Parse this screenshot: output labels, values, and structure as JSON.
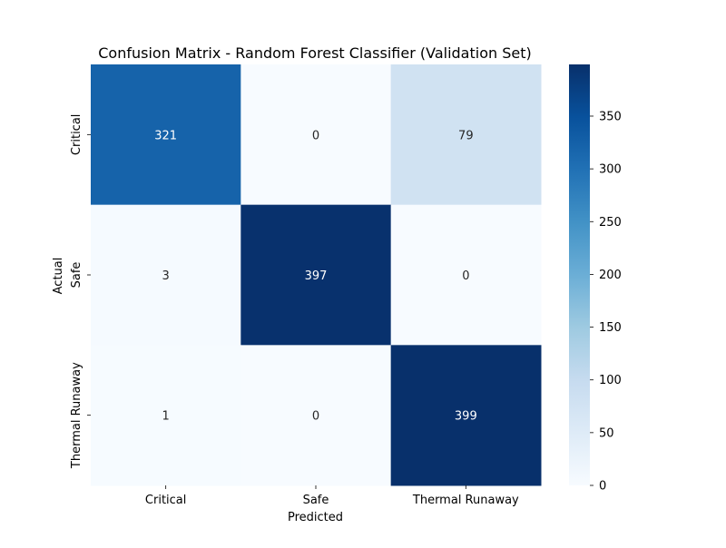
{
  "chart_data": {
    "type": "heatmap",
    "title": "Confusion Matrix - Random Forest Classifier (Validation Set)",
    "xlabel": "Predicted",
    "ylabel": "Actual",
    "x_categories": [
      "Critical",
      "Safe",
      "Thermal Runaway"
    ],
    "y_categories": [
      "Critical",
      "Safe",
      "Thermal Runaway"
    ],
    "matrix": [
      [
        321,
        0,
        79
      ],
      [
        3,
        397,
        0
      ],
      [
        1,
        0,
        399
      ]
    ],
    "colormap": "Blues",
    "colorbar": {
      "min": 0,
      "max": 399,
      "ticks": [
        0,
        50,
        100,
        150,
        200,
        250,
        300,
        350
      ]
    }
  }
}
